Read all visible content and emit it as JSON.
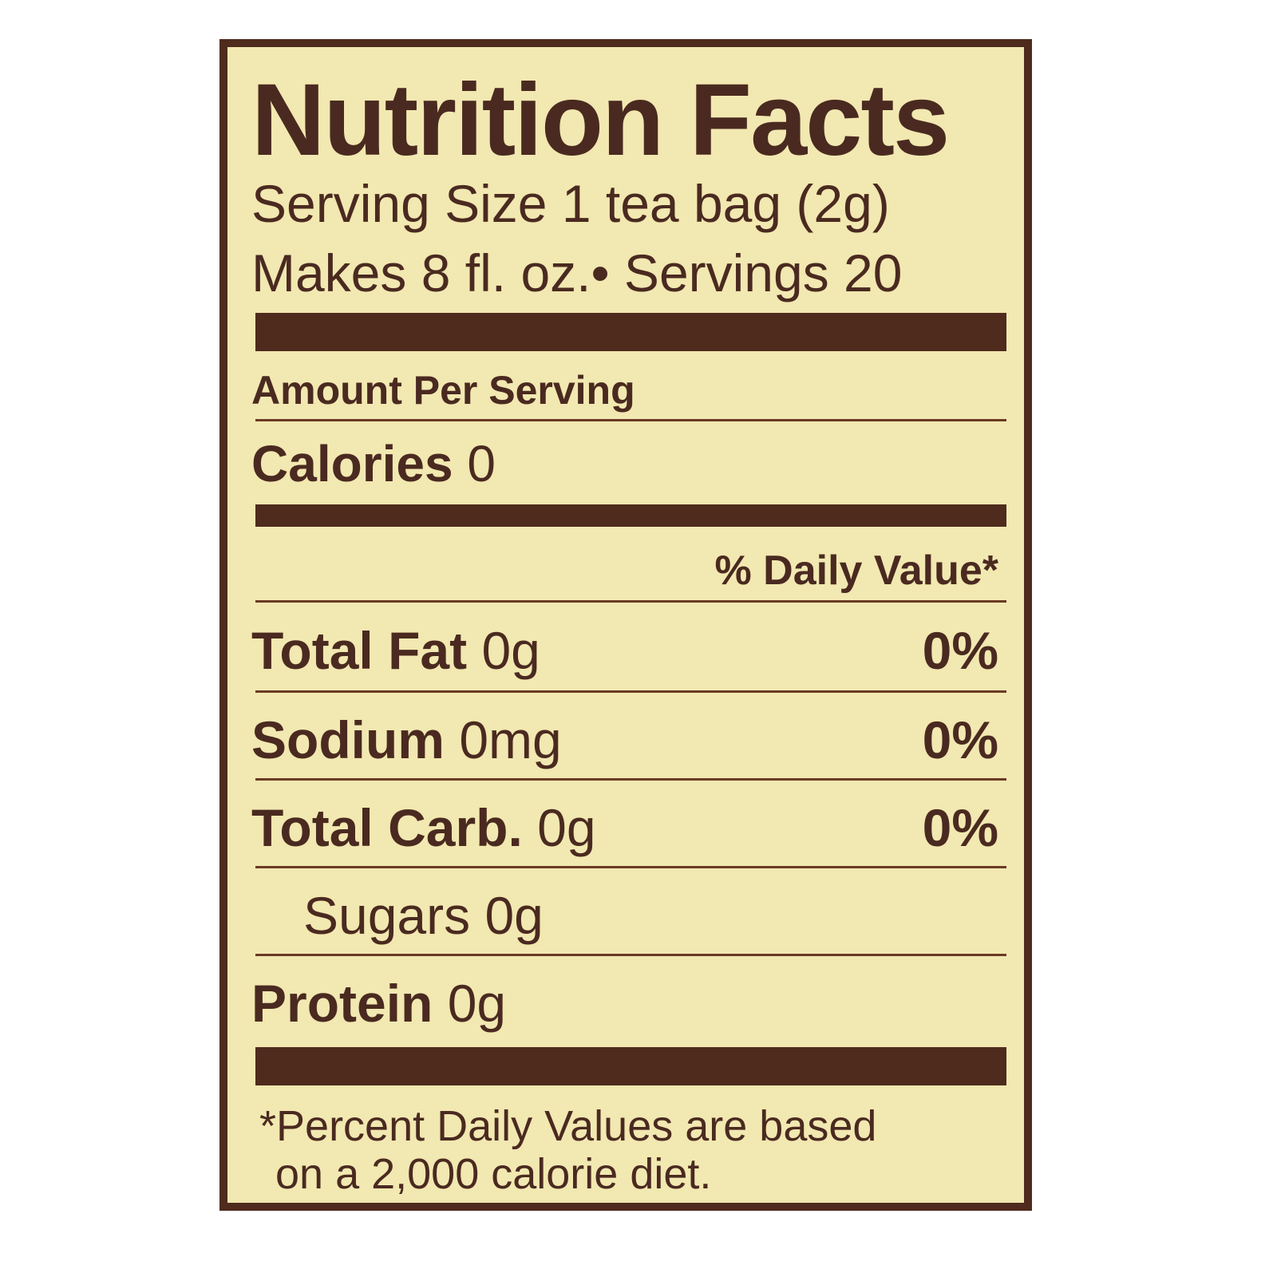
{
  "label": {
    "title": "Nutrition Facts",
    "serving_size": "Serving Size 1 tea bag (2g)",
    "makes": "Makes 8 fl. oz.• Servings 20",
    "amount_per_serving": "Amount Per Serving",
    "calories_label": "Calories",
    "calories_value": "0",
    "daily_value_header": "% Daily Value*",
    "nutrients": [
      {
        "name": "Total Fat",
        "amount": "0g",
        "dv": "0%"
      },
      {
        "name": "Sodium",
        "amount": "0mg",
        "dv": "0%"
      },
      {
        "name": "Total Carb.",
        "amount": "0g",
        "dv": "0%"
      },
      {
        "name": "Sugars",
        "amount": "0g",
        "dv": ""
      },
      {
        "name": "Protein",
        "amount": "0g",
        "dv": ""
      }
    ],
    "footnote_line1": "*Percent Daily Values are based",
    "footnote_line2": "on a 2,000 calorie diet."
  },
  "colors": {
    "background": "#f2e8b1",
    "ink": "#4a2a20",
    "border": "#4e2b1d"
  }
}
